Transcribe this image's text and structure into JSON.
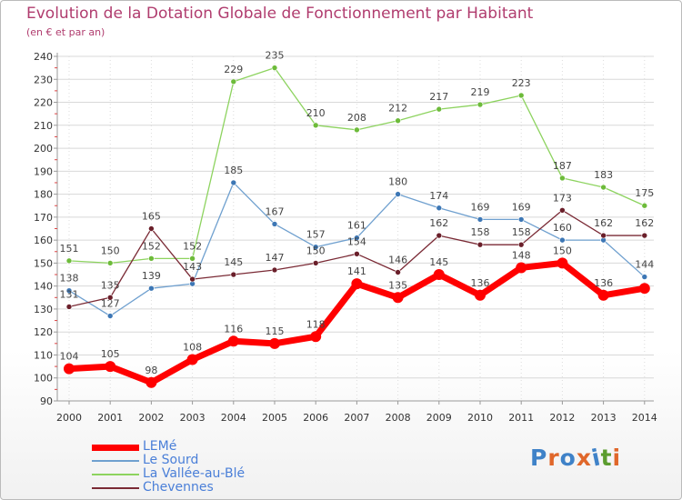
{
  "title": "Evolution de la Dotation Globale de Fonctionnement par Habitant",
  "subtitle": "(en € et par an)",
  "logo": {
    "text": "Proxiti",
    "letter_colors": [
      "#3f82c8",
      "#e0672a",
      "#3f82c8",
      "#e0672a",
      "#3f82c8",
      "#5b9c2e",
      "#e0672a"
    ]
  },
  "chart_data": {
    "type": "line",
    "x": [
      2000,
      2001,
      2002,
      2003,
      2004,
      2005,
      2006,
      2007,
      2008,
      2009,
      2010,
      2011,
      2012,
      2013,
      2014
    ],
    "x_tick_labels": [
      "2000",
      "2001",
      "2002",
      "2003",
      "2004",
      "2005",
      "2006",
      "2007",
      "2008",
      "2009",
      "2010",
      "2011",
      "2012",
      "2013",
      "2014"
    ],
    "ylim": [
      90,
      240
    ],
    "y_ticks": [
      90,
      100,
      110,
      120,
      130,
      140,
      150,
      160,
      170,
      180,
      190,
      200,
      210,
      220,
      230,
      240
    ],
    "y_tick_labels": [
      "90",
      "100",
      "110",
      "120",
      "130",
      "140",
      "150",
      "160",
      "170",
      "180",
      "190",
      "200",
      "210",
      "220",
      "230",
      "240"
    ],
    "grid": "horizontal",
    "legend_placement": "bottom-left",
    "series": [
      {
        "name": "La Vallée-au-Blé",
        "color": "#8dd35f",
        "marker_color": "#6dbb3a",
        "width": 1.3,
        "values": [
          151,
          150,
          152,
          152,
          229,
          235,
          210,
          208,
          212,
          217,
          219,
          223,
          187,
          183,
          175
        ],
        "labels": [
          "151",
          "150",
          "152",
          "152",
          "229",
          "235",
          "210",
          "208",
          "212",
          "217",
          "219",
          "223",
          "187",
          "183",
          "175"
        ]
      },
      {
        "name": "Le Sourd",
        "color": "#6fa0cf",
        "marker_color": "#3d77b5",
        "width": 1.3,
        "values": [
          138,
          127,
          139,
          141,
          185,
          167,
          157,
          161,
          180,
          174,
          169,
          169,
          160,
          160,
          144
        ],
        "labels": [
          "138",
          "127",
          "139",
          "",
          "185",
          "167",
          "157",
          "161",
          "180",
          "174",
          "169",
          "169",
          "160",
          "",
          "144"
        ]
      },
      {
        "name": "Chevennes",
        "color": "#7a2a35",
        "marker_color": "#6a1f2a",
        "width": 1.3,
        "values": [
          131,
          135,
          165,
          143,
          145,
          147,
          150,
          154,
          146,
          162,
          158,
          158,
          173,
          162,
          162
        ],
        "labels": [
          "131",
          "135",
          "165",
          "143",
          "145",
          "147",
          "150",
          "154",
          "146",
          "162",
          "158",
          "158",
          "173",
          "162",
          "162"
        ]
      },
      {
        "name": "LEMé",
        "color": "#ff0000",
        "marker_color": "#ff0000",
        "width": 7,
        "values": [
          104,
          105,
          98,
          108,
          116,
          115,
          118,
          141,
          135,
          145,
          136,
          148,
          150,
          136,
          139
        ],
        "labels": [
          "104",
          "105",
          "98",
          "108",
          "116",
          "115",
          "118",
          "141",
          "135",
          "145",
          "136",
          "148",
          "150",
          "136",
          ""
        ]
      }
    ],
    "legend_order": [
      "LEMé",
      "Le Sourd",
      "La Vallée-au-Blé",
      "Chevennes"
    ]
  }
}
